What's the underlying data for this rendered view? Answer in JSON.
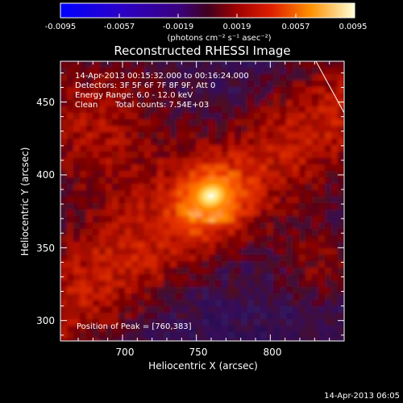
{
  "colorbar": {
    "tick_labels": [
      "-0.0095",
      "-0.0057",
      "-0.0019",
      "0.0019",
      "0.0057",
      "0.0095"
    ],
    "tick_values": [
      -0.0095,
      -0.0057,
      -0.0019,
      0.0019,
      0.0057,
      0.0095
    ],
    "units_label": "(photons cm⁻² s⁻¹ asec⁻²)",
    "range": [
      -0.0095,
      0.0095
    ]
  },
  "title": "Reconstructed RHESSI Image",
  "annotations": {
    "time_range": "14-Apr-2013 00:15:32.000 to 00:16:24.000",
    "detectors": "Detectors: 3F 5F 6F 7F 8F 9F, Att 0",
    "energy_range": "Energy Range: 6.0 - 12.0 keV",
    "clean": "Clean",
    "total_counts": "Total counts: 7.54E+03",
    "peak": "Position of Peak = [760,383]"
  },
  "axes": {
    "x_label": "Heliocentric X (arcsec)",
    "y_label": "Heliocentric Y (arcsec)",
    "x_ticks": [
      {
        "value": 700,
        "label": "700"
      },
      {
        "value": 750,
        "label": "750"
      },
      {
        "value": 800,
        "label": "800"
      }
    ],
    "y_ticks": [
      {
        "value": 300,
        "label": "300"
      },
      {
        "value": 350,
        "label": "350"
      },
      {
        "value": 400,
        "label": "400"
      },
      {
        "value": 450,
        "label": "450"
      }
    ],
    "x_range": [
      658,
      850
    ],
    "y_range": [
      286,
      478
    ]
  },
  "peak_position": [
    760,
    383
  ],
  "timestamp": "14-Apr-2013 06:05",
  "colors": {
    "background": "#000000",
    "foreground": "#ffffff"
  }
}
